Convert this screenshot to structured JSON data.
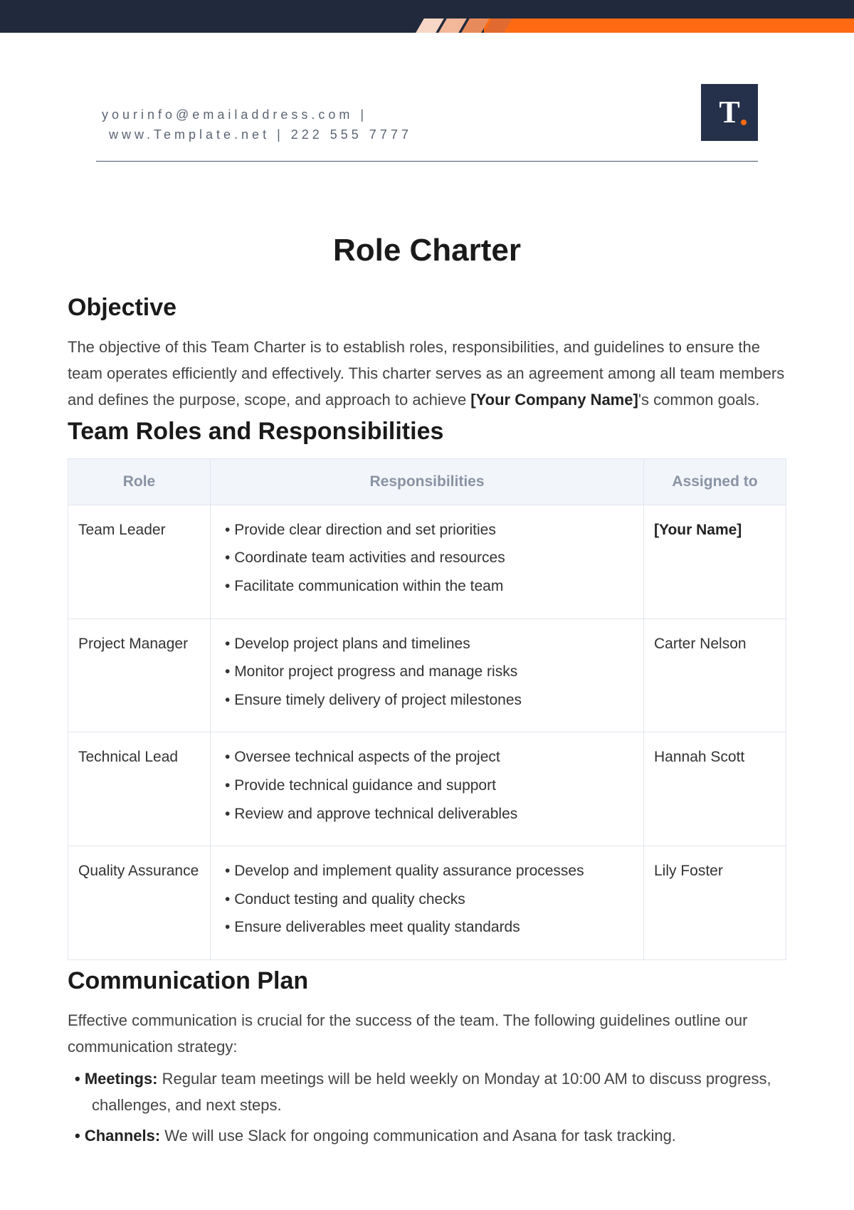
{
  "colors": {
    "topbar_bg": "#202a3c",
    "orange": "#ff6a13",
    "logo_bg": "#25314a",
    "header_text": "#5b6472",
    "table_header_bg": "#f2f5fa",
    "table_header_text": "#8a93a3",
    "table_border": "#e2e6ee",
    "body_text": "#444",
    "heading_text": "#1a1a1a"
  },
  "header": {
    "line1": "yourinfo@emailaddress.com |",
    "line2": "www.Template.net | 222 555 7777",
    "logo_letter": "T"
  },
  "title": "Role Charter",
  "objective": {
    "heading": "Objective",
    "text_pre": "The objective of this Team Charter is to establish roles, responsibilities, and guidelines to ensure the team operates efficiently and effectively. This charter serves as an agreement among all team members and defines the purpose, scope, and approach to achieve ",
    "placeholder": "[Your Company Name]",
    "text_post": "'s common goals."
  },
  "roles_section": {
    "heading": "Team Roles and Responsibilities",
    "columns": [
      "Role",
      "Responsibilities",
      "Assigned to"
    ],
    "rows": [
      {
        "role": "Team Leader",
        "responsibilities": [
          "Provide clear direction and set priorities",
          "Coordinate team activities and resources",
          "Facilitate communication within the team"
        ],
        "assigned": "[Your Name]",
        "assigned_bold": true
      },
      {
        "role": "Project Manager",
        "responsibilities": [
          "Develop project plans and timelines",
          "Monitor project progress and manage risks",
          "Ensure timely delivery of project milestones"
        ],
        "assigned": "Carter Nelson",
        "assigned_bold": false
      },
      {
        "role": "Technical Lead",
        "responsibilities": [
          "Oversee technical aspects of the project",
          "Provide technical guidance and support",
          "Review and approve technical deliverables"
        ],
        "assigned": "Hannah Scott",
        "assigned_bold": false
      },
      {
        "role": "Quality Assurance",
        "responsibilities": [
          "Develop and implement quality assurance processes",
          "Conduct testing and quality checks",
          "Ensure deliverables meet quality standards"
        ],
        "assigned": "Lily Foster",
        "assigned_bold": false
      }
    ]
  },
  "communication": {
    "heading": "Communication Plan",
    "intro": "Effective communication is crucial for the success of the team. The following guidelines outline our communication strategy:",
    "items": [
      {
        "label": "Meetings:",
        "text": " Regular team meetings will be held weekly on Monday at 10:00 AM to discuss progress, challenges, and next steps."
      },
      {
        "label": "Channels:",
        "text": " We will use Slack for ongoing communication and Asana for task tracking."
      }
    ]
  }
}
